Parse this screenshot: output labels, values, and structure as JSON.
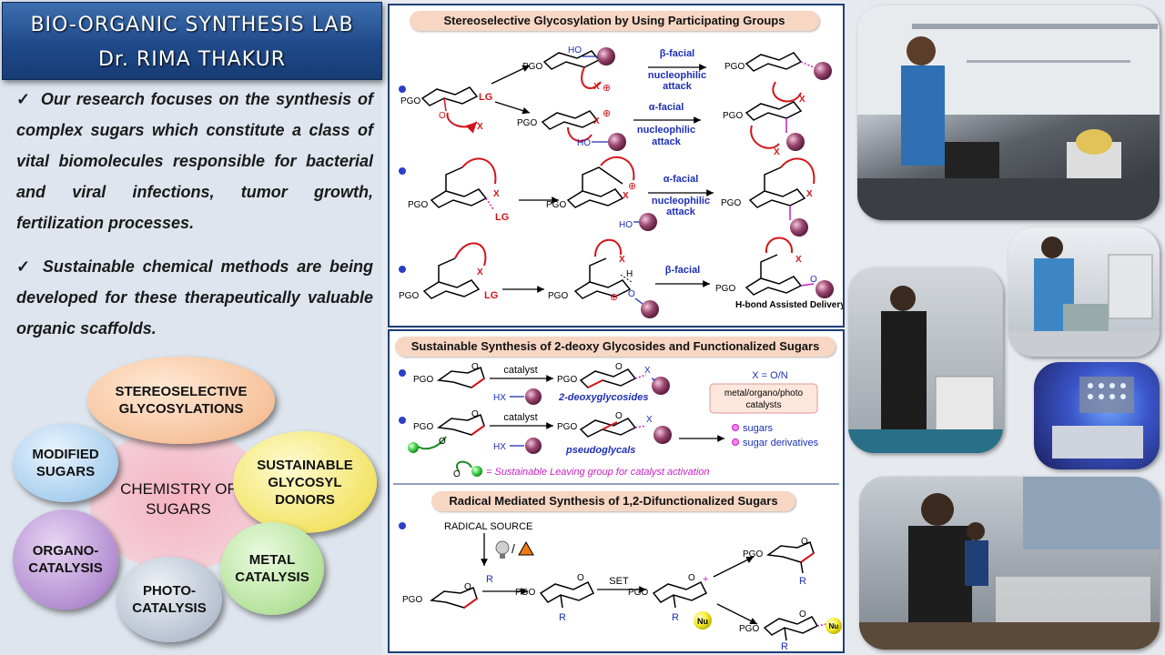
{
  "lab": {
    "title": "BIO-ORGANIC SYNTHESIS LAB",
    "pi": "Dr. RIMA THAKUR"
  },
  "intro": {
    "check": "✓",
    "p1": "Our research focuses on the synthesis of complex sugars which constitute a class of vital biomolecules responsible for bacterial and viral infections, tumor growth, fertilization processes.",
    "p2": "Sustainable chemical methods are being developed for these therapeutically valuable organic scaffolds."
  },
  "themes": {
    "center": [
      "CHEMISTRY OF",
      "SUGARS"
    ],
    "stereo": [
      "STEREOSELECTIVE",
      "GLYCOSYLATIONS"
    ],
    "modified": [
      "MODIFIED",
      "SUGARS"
    ],
    "donors": [
      "SUSTAINABLE",
      "GLYCOSYL",
      "DONORS"
    ],
    "organo": [
      "ORGANO-",
      "CATALYSIS"
    ],
    "metal": [
      "METAL",
      "CATALYSIS"
    ],
    "photo": [
      "PHOTO-",
      "CATALYSIS"
    ]
  },
  "panel1": {
    "title": "Stereoselective Glycosylation by Using Participating Groups",
    "labels": {
      "pgo": "PGO",
      "lg": "LG",
      "ho": "HO",
      "o": "O",
      "x": "X",
      "plus": "⊕",
      "h": "H"
    },
    "r1_top_arrow": [
      "β-facial",
      "nucleophilic",
      "attack"
    ],
    "r1_bot_arrow": [
      "α-facial",
      "nucleophilic",
      "attack"
    ],
    "r2_arrow": [
      "α-facial",
      "nucleophilic",
      "attack"
    ],
    "r3_arrow": "β-facial",
    "r3_caption": "H-bond Assisted Delivery"
  },
  "panel2": {
    "title": "Sustainable Synthesis of 2-deoxy Glycosides and Functionalized Sugars",
    "catalyst": "catalyst",
    "hx": "HX",
    "deoxy": "2-deoxyglycosides",
    "pseudo": "pseudoglycals",
    "xon": "X = O/N",
    "cat_types": [
      "metal/organo/photo",
      "catalysts"
    ],
    "prod1": "sugars",
    "prod2": "sugar derivatives",
    "leaving": "= Sustainable Leaving group for catalyst activation",
    "o": "O"
  },
  "panel3": {
    "title": "Radical Mediated Synthesis of 1,2-Difunctionalized Sugars",
    "radical_source": "RADICAL SOURCE",
    "r": "R",
    "set": "SET",
    "nu": "Nu",
    "pgo": "PGO",
    "o": "O",
    "slash": "/"
  },
  "colors": {
    "accent_red": "#d4141a",
    "accent_blue": "#1d2fb6",
    "accent_magenta": "#c71fc3",
    "sphere": "#8e3a62",
    "nu_yellow": "#f5ee2a"
  }
}
